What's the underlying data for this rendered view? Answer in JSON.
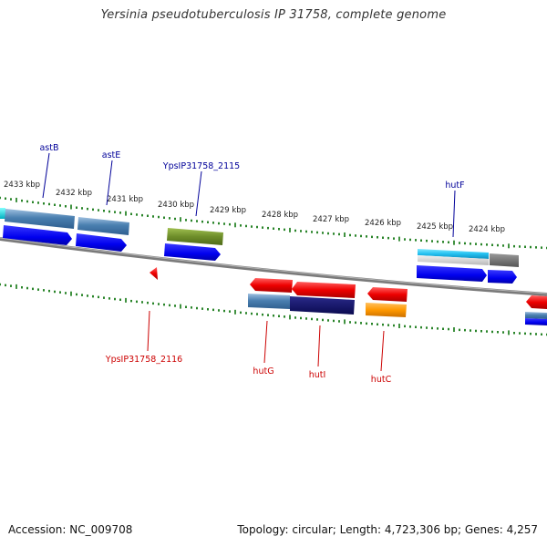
{
  "title": "Yersinia pseudotuberculosis IP 31758, complete genome",
  "footer": {
    "accession_label": "Accession:",
    "accession": "NC_009708",
    "summary": "Topology: circular; Length: 4,723,306 bp; Genes: 4,257"
  },
  "colors": {
    "backbone": "#888888",
    "tick": "#117711",
    "forward_label": "#000099",
    "reverse_label": "#cc0000"
  },
  "kbp_labels": [
    "2433 kbp",
    "2432 kbp",
    "2431 kbp",
    "2430 kbp",
    "2429 kbp",
    "2428 kbp",
    "2427 kbp",
    "2426 kbp",
    "2425 kbp",
    "2424 kbp"
  ],
  "gene_labels": {
    "forward": [
      "astB",
      "astE",
      "YpsIP31758_2115",
      "hutF"
    ],
    "reverse": [
      "YpsIP31758_2116",
      "hutG",
      "hutI",
      "hutC"
    ]
  }
}
